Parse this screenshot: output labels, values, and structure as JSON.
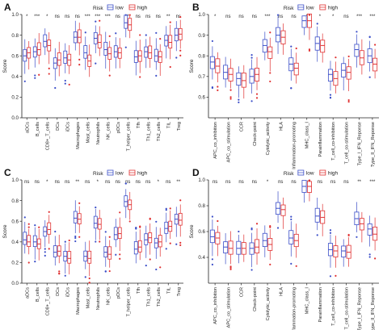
{
  "legend": {
    "title": "Risk",
    "low": "low",
    "high": "high"
  },
  "colors": {
    "low": "#3b4ec8",
    "high": "#e03030",
    "axis": "#222222"
  },
  "chart_data": [
    {
      "panel": "A",
      "type": "boxplot",
      "ylabel": "Score",
      "ylim": [
        0,
        1.0
      ],
      "yticks": [
        0.0,
        0.2,
        0.4,
        0.6,
        0.8,
        1.0
      ],
      "yticklabels": [
        "0.0",
        "0.2",
        "0.4",
        "0.6",
        "0.8",
        "1.0"
      ],
      "categories": [
        "aDCs",
        "B_cells",
        "CD8+_T_cells",
        "DCs",
        "iDCs",
        "Macrophages",
        "Mast_cells",
        "Neutrophils",
        "NK_cells",
        "pDCs",
        "T_helper_cells",
        "Tfh",
        "Th1_cells",
        "Th2_cells",
        "TIL",
        "Treg"
      ],
      "significance": [
        "*",
        "***",
        "*",
        "ns",
        "ns",
        "ns",
        "***",
        "***",
        "***",
        "ns",
        "*",
        "ns",
        "ns",
        "ns",
        "**",
        "ns"
      ],
      "series": [
        {
          "name": "low",
          "medians": [
            0.6,
            0.64,
            0.74,
            0.53,
            0.58,
            0.78,
            0.63,
            0.77,
            0.66,
            0.64,
            0.92,
            0.59,
            0.64,
            0.6,
            0.75,
            0.8
          ]
        },
        {
          "name": "high",
          "medians": [
            0.63,
            0.66,
            0.7,
            0.56,
            0.56,
            0.78,
            0.55,
            0.73,
            0.62,
            0.63,
            0.9,
            0.6,
            0.63,
            0.59,
            0.73,
            0.81
          ]
        }
      ]
    },
    {
      "panel": "B",
      "type": "boxplot",
      "ylabel": "Score",
      "ylim": [
        0.5,
        1.0
      ],
      "yticks": [
        0.6,
        0.7,
        0.8,
        0.9,
        1.0
      ],
      "yticklabels": [
        "0.6",
        "0.7",
        "0.8",
        "0.9",
        "1.0"
      ],
      "categories": [
        "APC_co_inhibition",
        "APC_co_stimulation",
        "CCR",
        "Check-point",
        "Cytolytic_activity",
        "HLA",
        "Inflammation-promoting",
        "MHC_class_I",
        "Parainflammation",
        "T_cell_co-inhibition",
        "T_cell_co-stimulation",
        "Type_I_IFN_Reponse",
        "Type_II_IFN_Reponse"
      ],
      "significance": [
        "*",
        "ns",
        "ns",
        "ns",
        "***",
        "ns",
        "ns",
        "*",
        "*",
        "*",
        "ns",
        "***",
        "***"
      ],
      "series": [
        {
          "name": "low",
          "medians": [
            0.77,
            0.72,
            0.69,
            0.7,
            0.85,
            0.9,
            0.76,
            0.97,
            0.86,
            0.71,
            0.73,
            0.83,
            0.8
          ]
        },
        {
          "name": "high",
          "medians": [
            0.75,
            0.71,
            0.68,
            0.71,
            0.82,
            0.89,
            0.74,
            0.97,
            0.85,
            0.69,
            0.72,
            0.79,
            0.76
          ]
        }
      ]
    },
    {
      "panel": "C",
      "type": "boxplot",
      "ylabel": "Score",
      "ylim": [
        0,
        1.0
      ],
      "yticks": [
        0.0,
        0.2,
        0.4,
        0.6,
        0.8,
        1.0
      ],
      "yticklabels": [
        "0.0",
        "0.2",
        "0.4",
        "0.6",
        "0.8",
        "1.0"
      ],
      "categories": [
        "aDCs",
        "B_cells",
        "CD8+_T_cells",
        "DCs",
        "iDCs",
        "Macrophages",
        "Mast_cells",
        "Neutrophils",
        "NK_cells",
        "pDCs",
        "T_helper_cells",
        "Tfh",
        "Th1_cells",
        "Th2_cells",
        "TIL",
        "Treg"
      ],
      "significance": [
        "ns",
        "ns",
        "*",
        "ns",
        "ns",
        "**",
        "ns",
        "*",
        "ns",
        "ns",
        "ns",
        "ns",
        "ns",
        "*",
        "ns",
        "**"
      ],
      "series": [
        {
          "name": "low",
          "medians": [
            0.42,
            0.4,
            0.5,
            0.3,
            0.26,
            0.63,
            0.26,
            0.58,
            0.3,
            0.47,
            0.79,
            0.33,
            0.42,
            0.39,
            0.53,
            0.62
          ]
        },
        {
          "name": "high",
          "medians": [
            0.4,
            0.38,
            0.52,
            0.31,
            0.24,
            0.62,
            0.24,
            0.57,
            0.28,
            0.48,
            0.76,
            0.35,
            0.44,
            0.4,
            0.55,
            0.61
          ]
        }
      ]
    },
    {
      "panel": "D",
      "type": "boxplot",
      "ylabel": "Score",
      "ylim": [
        0.2,
        1.0
      ],
      "yticks": [
        0.4,
        0.6,
        0.8,
        1.0
      ],
      "yticklabels": [
        "0.4",
        "0.6",
        "0.8",
        "1.0"
      ],
      "categories": [
        "APC_co_inhibition",
        "APC_co_stimulation",
        "CCR",
        "Check-point",
        "Cytolytic_activity",
        "HLA",
        "Inflammation-promoting",
        "MHC_class_I",
        "Parainflammation",
        "T_cell_co-inhibition",
        "T_cell_co-stimulation",
        "Type_I_IFN_Reponse",
        "Type_II_IFN_Reponse"
      ],
      "significance": [
        "ns",
        "ns",
        "ns",
        "ns",
        "*",
        "ns",
        "ns",
        "ns",
        "ns",
        "ns",
        "ns",
        "**",
        "***"
      ],
      "series": [
        {
          "name": "low",
          "medians": [
            0.56,
            0.48,
            0.47,
            0.47,
            0.53,
            0.78,
            0.55,
            0.95,
            0.72,
            0.46,
            0.45,
            0.7,
            0.62
          ]
        },
        {
          "name": "high",
          "medians": [
            0.55,
            0.47,
            0.47,
            0.48,
            0.5,
            0.77,
            0.53,
            0.95,
            0.71,
            0.45,
            0.44,
            0.66,
            0.58
          ]
        }
      ]
    }
  ]
}
